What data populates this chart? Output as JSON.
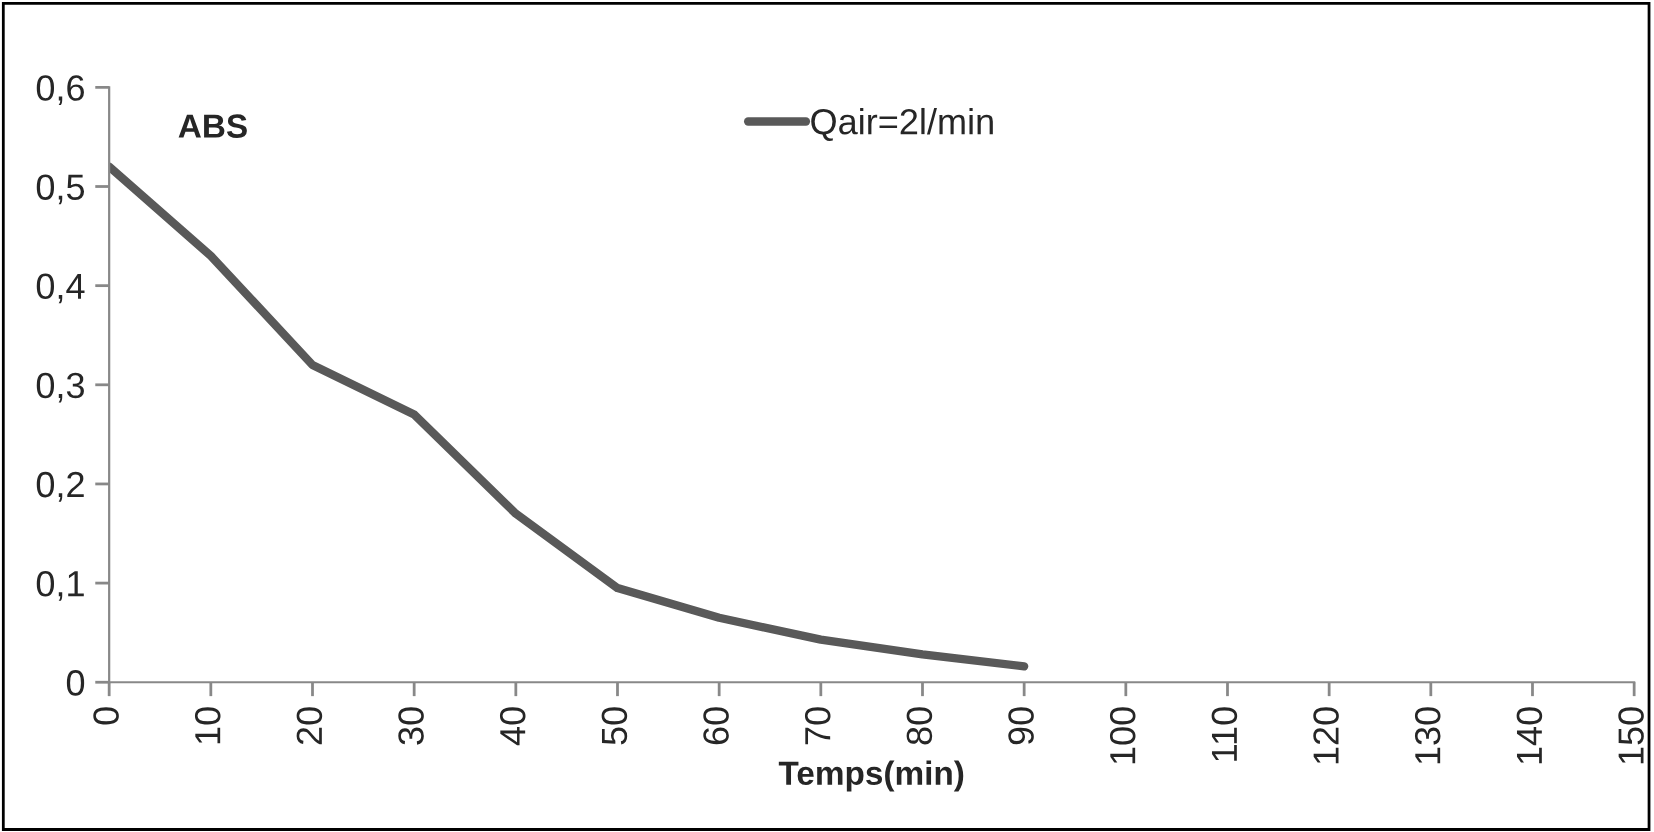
{
  "chart_data": {
    "type": "line",
    "ylabel": "ABS",
    "xlabel": "Temps(min)",
    "series": [
      {
        "name": "Qair=2l/min",
        "color": "#595959",
        "x": [
          0,
          10,
          20,
          30,
          40,
          50,
          60,
          70,
          80,
          90
        ],
        "values": [
          0.52,
          0.43,
          0.32,
          0.27,
          0.17,
          0.095,
          0.065,
          0.043,
          0.028,
          0.016
        ]
      }
    ],
    "xlim": [
      0,
      150
    ],
    "xticks": [
      0,
      10,
      20,
      30,
      40,
      50,
      60,
      70,
      80,
      90,
      100,
      110,
      120,
      130,
      140,
      150
    ],
    "ylim": [
      0,
      0.6
    ],
    "yticks": [
      0,
      {
        "value": 0.1,
        "label": "0,1"
      },
      {
        "value": 0.2,
        "label": "0,2"
      },
      {
        "value": 0.3,
        "label": "0,3"
      },
      {
        "value": 0.4,
        "label": "0,4"
      },
      {
        "value": 0.5,
        "label": "0,5"
      },
      {
        "value": 0.6,
        "label": "0,6"
      }
    ],
    "grid": false,
    "legend": "top",
    "marker": "none",
    "line_style": "solid"
  }
}
